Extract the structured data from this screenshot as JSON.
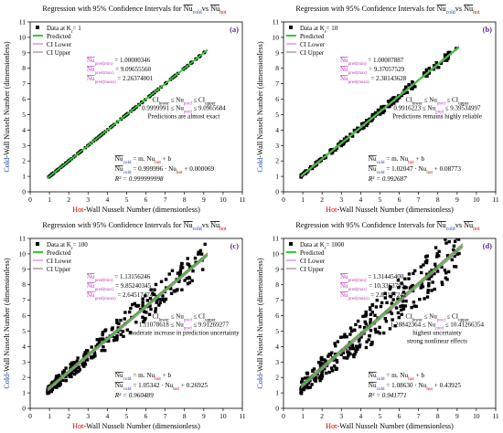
{
  "chart_data": [
    {
      "type": "scatter",
      "panel_label": "(a)",
      "title": {
        "prefix": "Regression with 95% Confidence Intervals for ",
        "a": "Nu",
        "a_sub": "cold",
        "mid": "vs ",
        "b": "Nu",
        "b_sub": "hot"
      },
      "legend": [
        {
          "label": "Data at K",
          "sub": "r",
          "suffix": "= 1",
          "kind": "marker",
          "color": "#000000"
        },
        {
          "label": "Predicted",
          "kind": "line",
          "color": "#33cc33"
        },
        {
          "label": "CI Lower",
          "kind": "line",
          "color": "#cc66cc"
        },
        {
          "label": "CI Upper",
          "kind": "line",
          "color": "#996666"
        }
      ],
      "stats": [
        {
          "name": "Nu",
          "sub": "pred(min)",
          "value": "= 1.00000346"
        },
        {
          "name": "Nu",
          "sub": "pred(max)",
          "value": "= 9.09655560"
        },
        {
          "name": "Nu",
          "sub": "pred(mean)",
          "value": "= 2.26374001"
        }
      ],
      "ci_line1": "CI",
      "ci_line1_sub": "lower",
      "ci_line1_mid": " ≤ Nu",
      "ci_line1_sub2": "pred",
      "ci_line1_end": " ≤ CI",
      "ci_line1_sub3": "upper",
      "ci_line2": "0.9999991 ≤ Nu",
      "ci_line2_sub": "pred",
      "ci_line2_end": " ≤ 9.0965684",
      "note": [
        "Predictions are almost exact"
      ],
      "eq1": "Nu",
      "eq1_sub": "cold",
      "eq1_rest": " = m. Nu",
      "eq1_sub2": "hot",
      "eq1_end": " + b",
      "eq2": "Nu",
      "eq2_sub": "cold",
      "eq2_rest": " = 0.999996 · Nu",
      "eq2_sub2": "hot",
      "eq2_end": " + 0.000069",
      "r2": "R² = 0.999999998",
      "xlabel_hot": "Hot",
      "xlabel_rest": "-Wall Nusselt Number (dimensionless)",
      "ylabel_cold": "Cold",
      "ylabel_rest": "-Wall Nusselt Number (dimensionless)",
      "xlim": [
        0,
        11
      ],
      "ylim": [
        0,
        11
      ],
      "xticks": [
        0,
        1,
        2,
        3,
        4,
        5,
        6,
        7,
        8,
        9,
        10,
        11
      ],
      "yticks": [
        0,
        1,
        2,
        3,
        4,
        5,
        6,
        7,
        8,
        9,
        10,
        11
      ],
      "fit": {
        "m": 0.999996,
        "b": 6.9e-05
      },
      "ci_width": 0.0,
      "scatter": {
        "seed": 11,
        "n": 140,
        "xmin": 0.95,
        "xmax": 9.1,
        "spread": 0.0
      }
    },
    {
      "type": "scatter",
      "panel_label": "(b)",
      "title": {
        "prefix": "Regression with 95% Confidence Intervals for ",
        "a": "Nu",
        "a_sub": "cold",
        "mid": "vs ",
        "b": "Nu",
        "b_sub": "hot"
      },
      "legend": [
        {
          "label": "Data at K",
          "sub": "r",
          "suffix": "= 10",
          "kind": "marker",
          "color": "#000000"
        },
        {
          "label": "Predicted",
          "kind": "line",
          "color": "#33cc33"
        },
        {
          "label": "CI Lower",
          "kind": "line",
          "color": "#cc66cc"
        },
        {
          "label": "CI Upper",
          "kind": "line",
          "color": "#996666"
        }
      ],
      "stats": [
        {
          "name": "Nu",
          "sub": "pred(min)",
          "value": "= 1.00007887"
        },
        {
          "name": "Nu",
          "sub": "pred(max)",
          "value": "= 9.37057529"
        },
        {
          "name": "Nu",
          "sub": "pred(mean)",
          "value": "= 2.38143628"
        }
      ],
      "ci_line1": "CI",
      "ci_line1_sub": "lower",
      "ci_line1_mid": " ≤ Nu",
      "ci_line1_sub2": "pred",
      "ci_line1_end": " ≤ CI",
      "ci_line1_sub3": "upper",
      "ci_line2": "0.9916223 ≤ Nu",
      "ci_line2_sub": "pred",
      "ci_line2_end": " ≤ 9.39534997",
      "note": [
        "Predictions remains highly reliable"
      ],
      "eq1": "Nu",
      "eq1_sub": "cold",
      "eq1_rest": " = m. Nu",
      "eq1_sub2": "hot",
      "eq1_end": " + b",
      "eq2": "Nu",
      "eq2_sub": "cold",
      "eq2_rest": " = 1.02047 · Nu",
      "eq2_sub2": "hot",
      "eq2_end": " + 0.08773",
      "r2": "R² = 0.992687",
      "xlabel_hot": "Hot",
      "xlabel_rest": "-Wall Nusselt Number (dimensionless)",
      "ylabel_cold": "Cold",
      "ylabel_rest": "-Wall Nusselt Number (dimensionless)",
      "xlim": [
        0,
        11
      ],
      "ylim": [
        0,
        11
      ],
      "xticks": [
        0,
        1,
        2,
        3,
        4,
        5,
        6,
        7,
        8,
        9,
        10,
        11
      ],
      "yticks": [
        0,
        1,
        2,
        3,
        4,
        5,
        6,
        7,
        8,
        9,
        10,
        11
      ],
      "fit": {
        "m": 1.02047,
        "b": 0.08773
      },
      "ci_width": 0.05,
      "scatter": {
        "seed": 23,
        "n": 200,
        "xmin": 0.9,
        "xmax": 9.0,
        "spread": 0.25
      }
    },
    {
      "type": "scatter",
      "panel_label": "(c)",
      "title": {
        "prefix": "Regression with 95% Confidence Intervals for ",
        "a": "Nu",
        "a_sub": "cold",
        "mid": "vs ",
        "b": "Nu",
        "b_sub": "hot"
      },
      "legend": [
        {
          "label": "Data at K",
          "sub": "r",
          "suffix": "= 100",
          "kind": "marker",
          "color": "#000000"
        },
        {
          "label": "Predicted",
          "kind": "line",
          "color": "#33cc33"
        },
        {
          "label": "CI Lower",
          "kind": "line",
          "color": "#cc66cc"
        },
        {
          "label": "CI Upper",
          "kind": "line",
          "color": "#996666"
        }
      ],
      "stats": [
        {
          "name": "Nu",
          "sub": "pred(min)",
          "value": "= 1.13156246"
        },
        {
          "name": "Nu",
          "sub": "pred(max)",
          "value": "= 9.85240345"
        },
        {
          "name": "Nu",
          "sub": "pred(mean)",
          "value": "= 2.64517474"
        }
      ],
      "ci_line1": "CI",
      "ci_line1_sub": "lower",
      "ci_line1_mid": " ≤ Nu",
      "ci_line1_sub2": "pred",
      "ci_line1_end": " ≤ CI",
      "ci_line1_sub3": "upper",
      "ci_line2": "1.11078618 ≤ Nu",
      "ci_line2_sub": "pred",
      "ci_line2_end": " ≤ 9.91269277",
      "note": [
        "moderate increase in prediction uncertainty"
      ],
      "eq1": "Nu",
      "eq1_sub": "cold",
      "eq1_rest": " = m. Nu",
      "eq1_sub2": "hot",
      "eq1_end": " + b",
      "eq2": "Nu",
      "eq2_sub": "cold",
      "eq2_rest": " = 1.05342 · Nu",
      "eq2_sub2": "hot",
      "eq2_end": " + 0.26925",
      "r2": "R² = 0.960489",
      "xlabel_hot": "Hot",
      "xlabel_rest": "-Wall Nusselt Number (dimensionless)",
      "ylabel_cold": "Cold",
      "ylabel_rest": "-Wall Nusselt Number (dimensionless)",
      "xlim": [
        0,
        11
      ],
      "ylim": [
        0,
        11
      ],
      "xticks": [
        0,
        1,
        2,
        3,
        4,
        5,
        6,
        7,
        8,
        9,
        10,
        11
      ],
      "yticks": [
        0,
        1,
        2,
        3,
        4,
        5,
        6,
        7,
        8,
        9,
        10,
        11
      ],
      "fit": {
        "m": 1.05342,
        "b": 0.26925
      },
      "ci_width": 0.1,
      "scatter": {
        "seed": 37,
        "n": 260,
        "xmin": 0.9,
        "xmax": 9.1,
        "spread": 0.9
      }
    },
    {
      "type": "scatter",
      "panel_label": "(d)",
      "title": {
        "prefix": "Regression with 95% Confidence Intervals for ",
        "a": "Nu",
        "a_sub": "cold",
        "mid": "vs ",
        "b": "Nu",
        "b_sub": "hot"
      },
      "legend": [
        {
          "label": "Data at K",
          "sub": "r",
          "suffix": "= 1000",
          "kind": "marker",
          "color": "#000000"
        },
        {
          "label": "Predicted",
          "kind": "line",
          "color": "#33cc33"
        },
        {
          "label": "CI Lower",
          "kind": "line",
          "color": "#cc66cc"
        },
        {
          "label": "CI Upper",
          "kind": "line",
          "color": "#996666"
        }
      ],
      "stats": [
        {
          "name": "Nu",
          "sub": "pred(min)",
          "value": "= 1.31445400"
        },
        {
          "name": "Nu",
          "sub": "pred(max)",
          "value": "= 10.3363789"
        },
        {
          "name": "Nu",
          "sub": "pred(mean)",
          "value": "= 2.89197242"
        }
      ],
      "ci_line1": "CI",
      "ci_line1_sub": "lower",
      "ci_line1_mid": " ≤ Nu",
      "ci_line1_sub2": "pred",
      "ci_line1_end": " ≤ CI",
      "ci_line1_sub3": "upper",
      "ci_line2": "1.28842364 ≤ Nu",
      "ci_line2_sub": "pred",
      "ci_line2_end": " ≤ 10.41266354",
      "note": [
        "highest uncertainty",
        "strong nonlinear effects"
      ],
      "eq1": "Nu",
      "eq1_sub": "cold",
      "eq1_rest": " = m. Nu",
      "eq1_sub2": "hot",
      "eq1_end": " + b",
      "eq2": "Nu",
      "eq2_sub": "cold",
      "eq2_rest": " = 1.08630 · Nu",
      "eq2_sub2": "hot",
      "eq2_end": " + 0.43925",
      "r2": "R² = 0.941771",
      "xlabel_hot": "Hot",
      "xlabel_rest": "-Wall Nusselt Number (dimensionless)",
      "ylabel_cold": "Cold",
      "ylabel_rest": "-Wall Nusselt Number (dimensionless)",
      "xlim": [
        0,
        11
      ],
      "ylim": [
        0,
        11
      ],
      "xticks": [
        0,
        1,
        2,
        3,
        4,
        5,
        6,
        7,
        8,
        9,
        10,
        11
      ],
      "yticks": [
        0,
        1,
        2,
        3,
        4,
        5,
        6,
        7,
        8,
        9,
        10,
        11
      ],
      "fit": {
        "m": 1.0863,
        "b": 0.43925
      },
      "ci_width": 0.12,
      "scatter": {
        "seed": 53,
        "n": 300,
        "xmin": 0.9,
        "xmax": 9.2,
        "spread": 1.4
      }
    }
  ],
  "colors": {
    "hot": "#cc0000",
    "cold": "#1a3fb0",
    "pred": "#c03cc0",
    "panel_label": "#5a2d8c",
    "ci_text": "#000000"
  }
}
